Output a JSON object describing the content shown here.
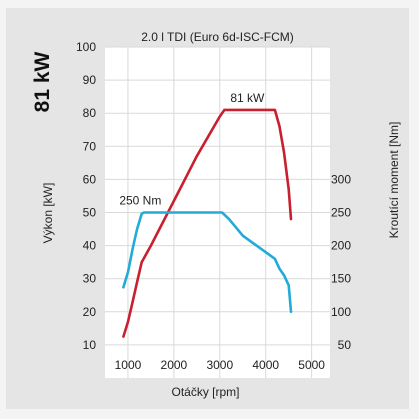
{
  "chart_data": {
    "type": "line",
    "title": "2.0 l TDI (Euro 6d-ISC-FCM)",
    "power_label": "81 kW",
    "xlabel": "Otáčky [rpm]",
    "ylabel_left": "Výkon [kW]",
    "ylabel_right": "Kroutící moment [Nm]",
    "xticks": [
      1000,
      2000,
      3000,
      4000,
      5000
    ],
    "xlim": [
      500,
      5400
    ],
    "yticks_left": [
      10,
      20,
      30,
      40,
      50,
      60,
      70,
      80,
      90,
      100
    ],
    "ylim_left": [
      0,
      100
    ],
    "yticks_right": [
      50,
      100,
      150,
      200,
      250,
      300
    ],
    "ylim_right": [
      0,
      500
    ],
    "grid": true,
    "annotations": [
      {
        "text": "81 kW",
        "series": "power"
      },
      {
        "text": "250 Nm",
        "series": "torque"
      }
    ],
    "series": [
      {
        "axis": "left",
        "color": "#c8202f",
        "x": [
          900,
          1000,
          1100,
          1200,
          1300,
          1500,
          2000,
          2500,
          3000,
          3100,
          3500,
          4000,
          4200,
          4300,
          4400,
          4500,
          4550
        ],
        "y": [
          12.5,
          17,
          23,
          29,
          35,
          40,
          53.5,
          67,
          79,
          81,
          81,
          81,
          81,
          76,
          68,
          57,
          48
        ]
      },
      {
        "axis": "right",
        "color": "#22abd6",
        "x": [
          900,
          1000,
          1100,
          1200,
          1300,
          1350,
          2000,
          2500,
          3000,
          3050,
          3200,
          3500,
          4000,
          4200,
          4300,
          4400,
          4500,
          4550
        ],
        "y": [
          137,
          160,
          195,
          225,
          248,
          250,
          250,
          250,
          250,
          250,
          240,
          215,
          190,
          180,
          165,
          155,
          140,
          100
        ]
      }
    ]
  }
}
